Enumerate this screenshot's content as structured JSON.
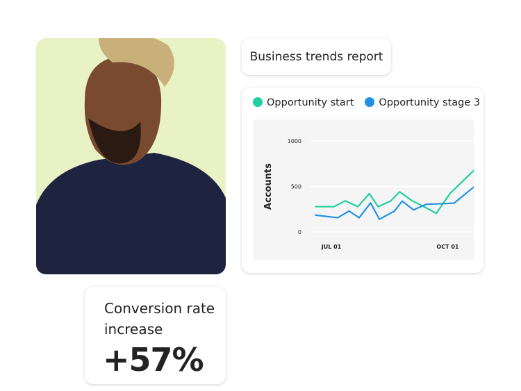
{
  "title_card": {
    "label": "Business trends report"
  },
  "conversion": {
    "label_line1": "Conversion rate",
    "label_line2": "increase",
    "value": "+57%"
  },
  "chart_data": {
    "type": "line",
    "ylabel": "Accounts",
    "xlabel": "",
    "ylim": [
      0,
      1000
    ],
    "yticks": [
      "0",
      "500",
      "1000"
    ],
    "xticks": [
      {
        "label": "JUL 01",
        "date": "07-01"
      },
      {
        "label": "OCT 01",
        "date": "10-01"
      }
    ],
    "grid": true,
    "legend": "top-left",
    "series": [
      {
        "name": "Opportunity start",
        "color": "#1fcf9e",
        "points": [
          [
            "06-18",
            278
          ],
          [
            "07-03",
            278
          ],
          [
            "07-12",
            342
          ],
          [
            "07-22",
            278
          ],
          [
            "07-31",
            421
          ],
          [
            "08-07",
            278
          ],
          [
            "08-17",
            342
          ],
          [
            "08-24",
            441
          ],
          [
            "09-03",
            342
          ],
          [
            "09-13",
            273
          ],
          [
            "09-22",
            204
          ],
          [
            "10-03",
            426
          ],
          [
            "10-23",
            694
          ]
        ]
      },
      {
        "name": "Opportunity stage 3",
        "color": "#2092e6",
        "points": [
          [
            "06-18",
            186
          ],
          [
            "07-06",
            156
          ],
          [
            "07-15",
            230
          ],
          [
            "07-23",
            156
          ],
          [
            "08-01",
            319
          ],
          [
            "08-08",
            140
          ],
          [
            "08-20",
            230
          ],
          [
            "08-26",
            339
          ],
          [
            "09-04",
            242
          ],
          [
            "09-14",
            304
          ],
          [
            "10-06",
            316
          ],
          [
            "10-24",
            520
          ]
        ]
      }
    ]
  }
}
